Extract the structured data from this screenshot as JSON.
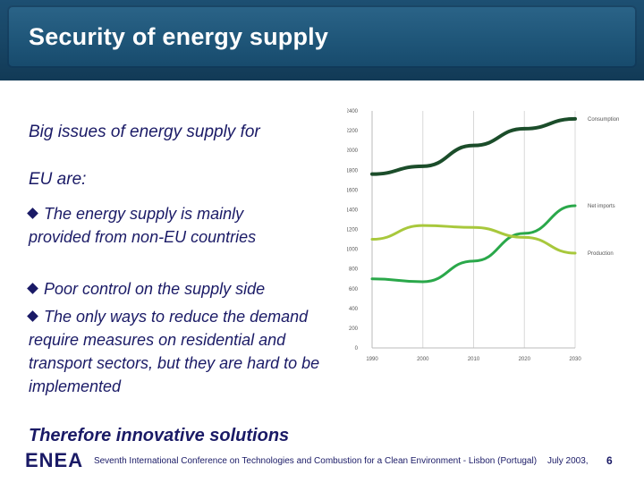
{
  "slide": {
    "title": "Security of energy supply",
    "intro_line1": "Big issues of energy supply for",
    "intro_line2": "EU are:",
    "bullets": [
      "The energy supply is mainly provided from non-EU countries",
      "Poor control on the supply side",
      "The only ways to reduce the demand require measures on residential and transport sectors, but they are hard to be implemented"
    ],
    "conclusion": "Therefore innovative solutions",
    "logo": "ENEA",
    "footer": {
      "conference": "Seventh International Conference on Technologies and Combustion for a Clean Environment - Lisbon (Portugal)",
      "date": "July 2003,",
      "page": "6"
    }
  },
  "colors": {
    "title_bar": "#1f5679",
    "text": "#1a1a66",
    "consumption": "#1b4d2a",
    "net_imports": "#2aa84a",
    "production": "#a8c83c"
  },
  "chart_data": {
    "type": "line",
    "x": [
      1990,
      2000,
      2010,
      2020,
      2030
    ],
    "series": [
      {
        "name": "Consumption",
        "values": [
          1760,
          1840,
          2050,
          2220,
          2320
        ]
      },
      {
        "name": "Net imports",
        "values": [
          700,
          670,
          880,
          1160,
          1440
        ]
      },
      {
        "name": "Production",
        "values": [
          1100,
          1240,
          1220,
          1120,
          960
        ]
      }
    ],
    "y_ticks": [
      0,
      200,
      400,
      600,
      800,
      1000,
      1200,
      1400,
      1600,
      1800,
      2000,
      2200,
      2400
    ],
    "x_ticks": [
      "1990",
      "2000",
      "2010",
      "2020",
      "2030"
    ],
    "ylim": [
      0,
      2400
    ],
    "grid": "vertical",
    "legend": "right (labels at line ends)"
  }
}
